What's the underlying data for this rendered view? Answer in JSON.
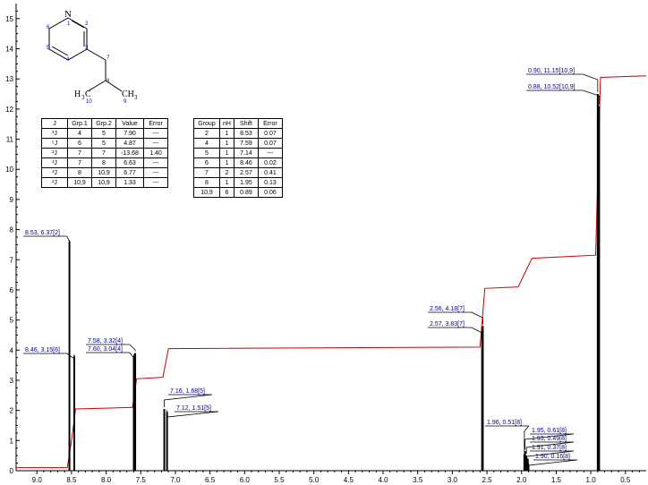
{
  "chart_data": {
    "type": "line",
    "title": "",
    "xlabel": "",
    "ylabel": "",
    "xlim": [
      9.3,
      0.2
    ],
    "ylim": [
      0,
      15.5
    ],
    "x_ticks": [
      "9.0",
      "8.5",
      "8.0",
      "7.5",
      "7.0",
      "6.5",
      "6.0",
      "5.5",
      "5.0",
      "4.5",
      "4.0",
      "3.5",
      "3.0",
      "2.5",
      "2.0",
      "1.5",
      "1.0",
      "0.5"
    ],
    "y_ticks": [
      "0",
      "1",
      "2",
      "3",
      "4",
      "5",
      "6",
      "7",
      "8",
      "9",
      "10",
      "11",
      "12",
      "13",
      "14",
      "15"
    ],
    "peaks": [
      {
        "shift": 8.53,
        "height": 7.6,
        "label": "8.53, 6.37[2]"
      },
      {
        "shift": 8.46,
        "height": 3.8,
        "label": "8.46, 3.15[6]"
      },
      {
        "shift": 7.6,
        "height": 3.8,
        "label": "7.60, 3.04[4]"
      },
      {
        "shift": 7.58,
        "height": 3.9,
        "label": "7.58, 3.32[4]"
      },
      {
        "shift": 7.16,
        "height": 2.05,
        "label": "7.16, 1.68[5]"
      },
      {
        "shift": 7.12,
        "height": 1.95,
        "label": "7.12, 1.51[5]"
      },
      {
        "shift": 2.57,
        "height": 4.6,
        "label": "2.57, 3.83[7]"
      },
      {
        "shift": 2.56,
        "height": 4.8,
        "label": "2.56, 4.18[7]"
      },
      {
        "shift": 1.96,
        "height": 0.55,
        "label": "1.96, 0.51[8]"
      },
      {
        "shift": 1.95,
        "height": 0.65,
        "label": "1.95, 0.61[8]"
      },
      {
        "shift": 1.93,
        "height": 0.5,
        "label": "1.93, 0.49[8]"
      },
      {
        "shift": 1.91,
        "height": 0.4,
        "label": "1.91, 0.37[8]"
      },
      {
        "shift": 1.9,
        "height": 0.2,
        "label": "1.90, 0.16[8]"
      },
      {
        "shift": 0.9,
        "height": 12.5,
        "label": "0.90, 11.15[10,9]"
      },
      {
        "shift": 0.88,
        "height": 12.1,
        "label": "0.88, 10.52[10,9]"
      }
    ],
    "integral_curve": {
      "x": [
        9.3,
        8.56,
        8.5,
        8.44,
        7.62,
        7.56,
        7.18,
        7.1,
        2.6,
        2.53,
        2.05,
        1.85,
        0.93,
        0.86,
        0.2
      ],
      "y": [
        0.1,
        0.1,
        1.0,
        2.05,
        2.1,
        3.05,
        3.1,
        4.05,
        4.1,
        6.05,
        6.1,
        7.05,
        7.15,
        13.05,
        13.1
      ]
    },
    "colors": {
      "integral": "#cc0000",
      "spectrum": "#000000",
      "labels": "#000080"
    }
  },
  "molecule": {
    "atoms": [
      "N",
      "H",
      "3",
      "C",
      "CH",
      "3"
    ],
    "atom_numbers": [
      "1",
      "2",
      "3",
      "4",
      "5",
      "6",
      "7",
      "8",
      "9",
      "10"
    ]
  },
  "coupling_table": {
    "headers": [
      "J",
      "Grp.1",
      "Grp.2",
      "Value",
      "Error"
    ],
    "rows": [
      [
        "³J",
        "4",
        "5",
        "7.90",
        "---"
      ],
      [
        "⁵J",
        "6",
        "5",
        "4.87",
        "---"
      ],
      [
        "²J",
        "7",
        "7",
        "-13.68",
        "1.40"
      ],
      [
        "³J",
        "7",
        "8",
        "6.63",
        "---"
      ],
      [
        "³J",
        "8",
        "10,9",
        "6.77",
        "---"
      ],
      [
        "²J",
        "10,9",
        "10,9",
        "1.33",
        "---"
      ]
    ]
  },
  "shift_table": {
    "headers": [
      "Group",
      "nH",
      "Shift",
      "Error"
    ],
    "rows": [
      [
        "2",
        "1",
        "8.53",
        "0.07"
      ],
      [
        "4",
        "1",
        "7.59",
        "0.07"
      ],
      [
        "5",
        "1",
        "7.14",
        "---"
      ],
      [
        "6",
        "1",
        "8.46",
        "0.02"
      ],
      [
        "7",
        "2",
        "2.57",
        "0.41"
      ],
      [
        "8",
        "1",
        "1.95",
        "0.13"
      ],
      [
        "10,9",
        "6",
        "0.89",
        "0.06"
      ]
    ]
  }
}
